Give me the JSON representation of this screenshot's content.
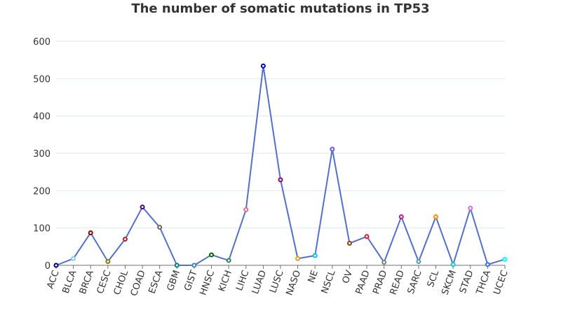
{
  "chart_data": {
    "type": "line",
    "title": "The number of somatic mutations in TP53",
    "xlabel": "",
    "ylabel": "",
    "ylim": [
      0,
      600
    ],
    "yticks": [
      0,
      100,
      200,
      300,
      400,
      500,
      600
    ],
    "grid": true,
    "categories": [
      "ACC",
      "BLCA",
      "BRCA",
      "CESC",
      "CHOL",
      "COAD",
      "ESCA",
      "GBM",
      "GIST",
      "HNSC",
      "KICH",
      "LIHC",
      "LUAD",
      "LUSC",
      "NASO",
      "NE",
      "NSCL",
      "OV",
      "PAAD",
      "PRAD",
      "READ",
      "SARC",
      "SCL",
      "SKCM",
      "STAD",
      "THCA",
      "UCEC"
    ],
    "series": [
      {
        "values": [
          0,
          18,
          87,
          10,
          70,
          156,
          102,
          0,
          0,
          28,
          13,
          149,
          534,
          229,
          18,
          26,
          311,
          59,
          77,
          8,
          130,
          10,
          130,
          2,
          153,
          2,
          16
        ],
        "line_color": "#5470c6",
        "point_colors": [
          "#000080",
          "#87cefa",
          "#8b0000",
          "#808000",
          "#b22222",
          "#4b0082",
          "#696969",
          "#008080",
          "#4682b4",
          "#006400",
          "#2e8b57",
          "#db7093",
          "#0000cd",
          "#8b008b",
          "#daa520",
          "#00bfff",
          "#6a5acd",
          "#8b4513",
          "#dc143c",
          "#808080",
          "#c71585",
          "#5f9ea0",
          "#ff8c00",
          "#00ced1",
          "#da70d6",
          "#4169e1",
          "#00ffff"
        ]
      }
    ]
  }
}
